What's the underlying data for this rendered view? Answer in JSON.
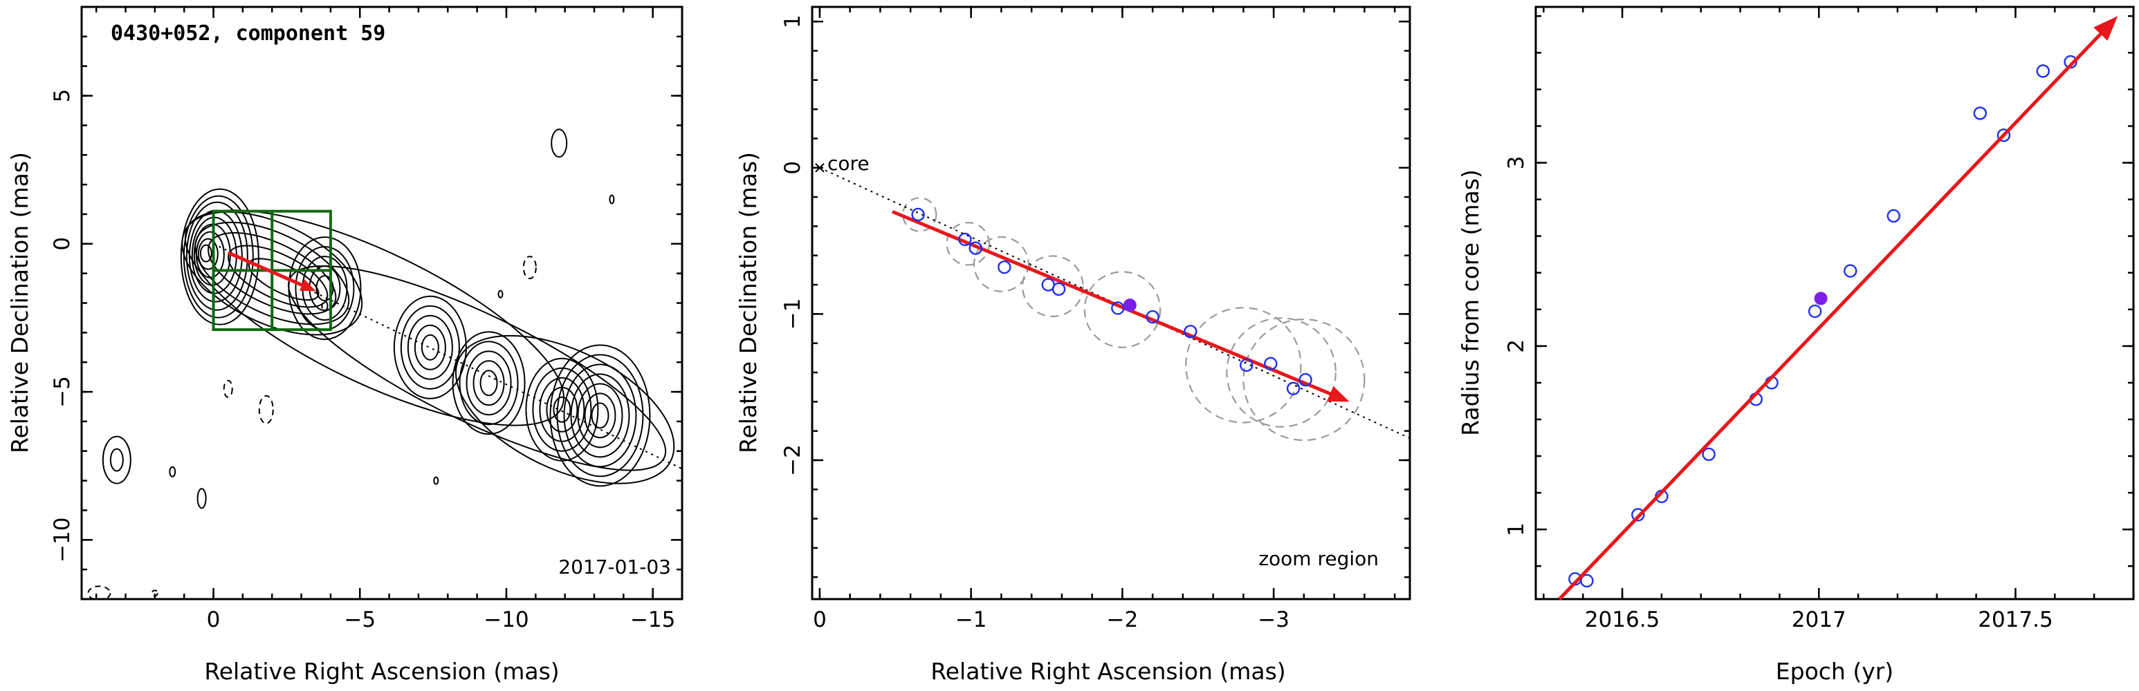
{
  "figure": {
    "panels": [
      {
        "id": "map",
        "label": "0430+052, component 59",
        "date": "2017-01-03",
        "xlabel": "Relative Right Ascension (mas)",
        "ylabel": "Relative Declination (mas)"
      },
      {
        "id": "zoom",
        "core_label": "core",
        "note": "zoom region",
        "xlabel": "Relative Right Ascension (mas)",
        "ylabel": "Relative Declination (mas)"
      },
      {
        "id": "radius",
        "xlabel": "Epoch (yr)",
        "ylabel": "Radius from core (mas)"
      }
    ],
    "colors": {
      "arrow": "#e8171b",
      "open_points": "#1f2ef0",
      "highlight_point": "#7b1fe8",
      "zoom_box": "#0e6b0e",
      "ghost_circles": "#9a9a9a"
    }
  },
  "chart_data": [
    {
      "type": "contour",
      "panel": "map",
      "x_reversed": true,
      "xlim": [
        4.5,
        -16.0
      ],
      "ylim": [
        -12.0,
        8.0
      ],
      "xticks": [
        0,
        -5,
        -10,
        -15
      ],
      "xtick_labels": [
        "0",
        "−5",
        "−10",
        "−15"
      ],
      "yticks": [
        5,
        0,
        -5,
        -10
      ],
      "ytick_labels": [
        "5",
        "0",
        "−5",
        "−10"
      ],
      "jet_features": [
        {
          "ra": 0.3,
          "dec": -0.3,
          "peak": true
        },
        {
          "ra": -3.8,
          "dec": -1.5
        },
        {
          "ra": -7.4,
          "dec": -3.5
        },
        {
          "ra": -9.4,
          "dec": -4.7
        },
        {
          "ra": -11.9,
          "dec": -5.6
        },
        {
          "ra": -13.2,
          "dec": -5.8
        }
      ],
      "jet_axis": {
        "from": [
          0,
          0
        ],
        "to": [
          -16,
          -7.6
        ]
      },
      "zoom_box": {
        "ra": [
          0,
          -4
        ],
        "dec": [
          1.1,
          -2.9
        ]
      },
      "motion_vector": {
        "from": [
          -0.5,
          -0.3
        ],
        "to": [
          -3.5,
          -1.6
        ]
      }
    },
    {
      "type": "scatter",
      "panel": "zoom",
      "x_reversed": true,
      "xlim": [
        0.05,
        -3.9
      ],
      "ylim": [
        -2.95,
        1.1
      ],
      "xticks": [
        0,
        -1,
        -2,
        -3
      ],
      "xtick_labels": [
        "0",
        "−1",
        "−2",
        "−3"
      ],
      "yticks": [
        1,
        0,
        -1,
        -2
      ],
      "ytick_labels": [
        "1",
        "0",
        "−1",
        "−2"
      ],
      "points": [
        {
          "ra": -0.65,
          "dec": -0.32
        },
        {
          "ra": -0.96,
          "dec": -0.49
        },
        {
          "ra": -1.03,
          "dec": -0.55
        },
        {
          "ra": -1.22,
          "dec": -0.68
        },
        {
          "ra": -1.51,
          "dec": -0.8
        },
        {
          "ra": -1.58,
          "dec": -0.83
        },
        {
          "ra": -1.97,
          "dec": -0.96
        },
        {
          "ra": -2.2,
          "dec": -1.02
        },
        {
          "ra": -2.45,
          "dec": -1.12
        },
        {
          "ra": -2.82,
          "dec": -1.35
        },
        {
          "ra": -2.98,
          "dec": -1.34
        },
        {
          "ra": -3.13,
          "dec": -1.51
        },
        {
          "ra": -3.21,
          "dec": -1.45
        }
      ],
      "highlight": {
        "ra": -2.05,
        "dec": -0.94
      },
      "component_sizes": [
        {
          "ra": -0.66,
          "dec": -0.32,
          "r": 0.11
        },
        {
          "ra": -0.98,
          "dec": -0.52,
          "r": 0.14
        },
        {
          "ra": -1.2,
          "dec": -0.66,
          "r": 0.18
        },
        {
          "ra": -1.54,
          "dec": -0.81,
          "r": 0.2
        },
        {
          "ra": -2.0,
          "dec": -0.97,
          "r": 0.25
        },
        {
          "ra": -2.8,
          "dec": -1.35,
          "r": 0.38
        },
        {
          "ra": -3.05,
          "dec": -1.4,
          "r": 0.36
        },
        {
          "ra": -3.2,
          "dec": -1.45,
          "r": 0.4
        }
      ],
      "jet_axis": {
        "from": [
          0,
          0
        ],
        "to": [
          -3.9,
          -1.85
        ]
      },
      "motion_vector": {
        "from": [
          -0.48,
          -0.3
        ],
        "to": [
          -3.5,
          -1.6
        ]
      }
    },
    {
      "type": "scatter",
      "panel": "radius",
      "xlim": [
        2016.28,
        2017.8
      ],
      "ylim": [
        0.62,
        3.85
      ],
      "xticks": [
        2016.5,
        2017,
        2017.5
      ],
      "xtick_labels": [
        "2016.5",
        "2017",
        "2017.5"
      ],
      "yticks": [
        1,
        2,
        3
      ],
      "ytick_labels": [
        "1",
        "2",
        "3"
      ],
      "x": [
        2016.38,
        2016.41,
        2016.54,
        2016.6,
        2016.72,
        2016.84,
        2016.88,
        2016.99,
        2017.08,
        2017.19,
        2017.41,
        2017.47,
        2017.57,
        2017.64
      ],
      "y": [
        0.73,
        0.72,
        1.08,
        1.18,
        1.41,
        1.71,
        1.8,
        2.19,
        2.41,
        2.71,
        3.27,
        3.15,
        3.5,
        3.55
      ],
      "highlight": {
        "x": 2017.005,
        "y": 2.26
      },
      "fit_line": {
        "x": [
          2016.34,
          2017.76
        ],
        "y": [
          0.62,
          3.8
        ]
      }
    }
  ]
}
